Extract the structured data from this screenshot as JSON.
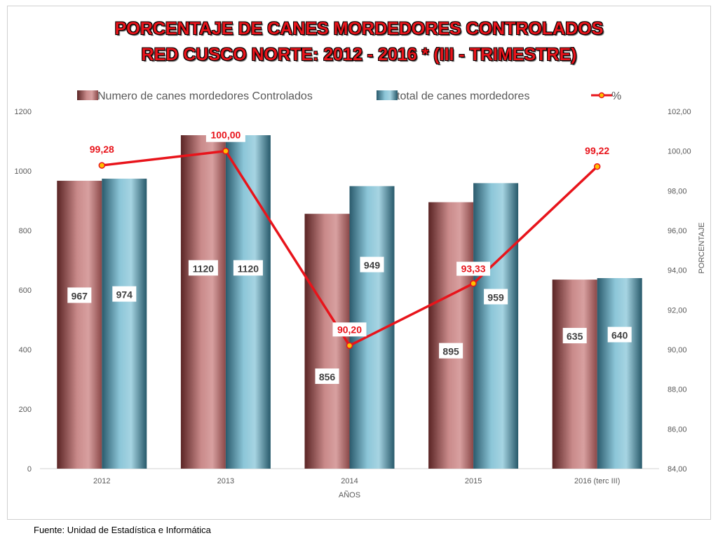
{
  "title": "PORCENTAJE DE CANES MORDEDORES CONTROLADOS",
  "subtitle": "RED CUSCO NORTE: 2012 - 2016 * (III - TRIMESTRE)",
  "footer": "Fuente: Unidad de Estadística e Informática",
  "colors": {
    "controlled_bar": "#c47f7f",
    "total_bar": "#6fb0c4",
    "line": "#e8141b",
    "label_text": "#404040",
    "line_label": "#e8141b"
  },
  "chart_data": {
    "type": "bar",
    "categories": [
      "2012",
      "2013",
      "2014",
      "2015",
      "2016 (terc III)"
    ],
    "xlabel": "AÑOS",
    "ylabel": "",
    "ylabel_right": "PORCENTAJE",
    "ylim": [
      0,
      1200
    ],
    "ylim_right": [
      84,
      102
    ],
    "y_ticks": [
      "0",
      "200",
      "400",
      "600",
      "800",
      "1000",
      "1200"
    ],
    "y_right_ticks": [
      "84,00",
      "86,00",
      "88,00",
      "90,00",
      "92,00",
      "94,00",
      "96,00",
      "98,00",
      "100,00",
      "102,00"
    ],
    "legend_position": "top",
    "series": [
      {
        "name": "Numero   de canes mordedores  Controlados",
        "kind": "bar",
        "axis": "left",
        "values": [
          967,
          1120,
          856,
          895,
          635
        ],
        "labels": [
          "967",
          "1120",
          "856",
          "895",
          "635"
        ]
      },
      {
        "name": "total de canes mordedores",
        "kind": "bar",
        "axis": "left",
        "values": [
          974,
          1120,
          949,
          959,
          640
        ],
        "labels": [
          "974",
          "1120",
          "949",
          "959",
          "640"
        ]
      },
      {
        "name": "%",
        "kind": "line",
        "axis": "right",
        "values": [
          99.28,
          100.0,
          90.2,
          93.33,
          99.22
        ],
        "labels": [
          "99,28",
          "100,00",
          "90,20",
          "93,33",
          "99,22"
        ]
      }
    ]
  }
}
